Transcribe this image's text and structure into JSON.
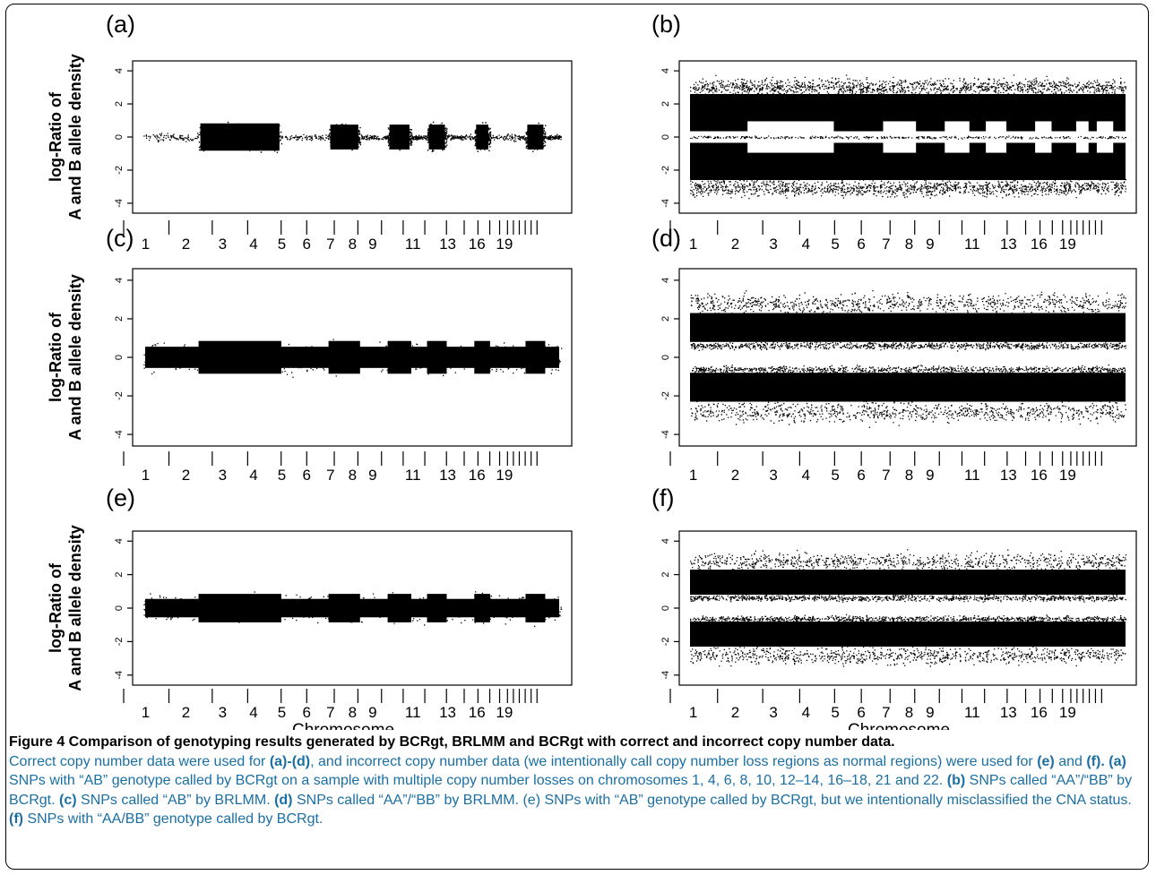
{
  "chart_data": [
    {
      "panel": "(a)",
      "type": "scatter",
      "ylabel_line1": "log-Ratio of",
      "ylabel_line2": "A and B allele density",
      "xlabel": "",
      "ylim": [
        -4,
        4
      ],
      "yticks": [
        "4",
        "2",
        "0",
        "-2",
        "-4"
      ],
      "xtick_labels": [
        "1",
        "2",
        "3",
        "4",
        "5",
        "6",
        "7",
        "8",
        "9",
        "11",
        "13",
        "16",
        "19"
      ],
      "description": "SNPs with AB genotype called by BCRgt",
      "pattern": "dense",
      "regions": [
        {
          "x0": 0.0,
          "x1": 0.14,
          "band": [
            -0.35,
            0.35
          ],
          "density": "sparse"
        },
        {
          "x0": 0.14,
          "x1": 0.35,
          "band": [
            -1.1,
            1.1
          ],
          "density": "dense"
        },
        {
          "x0": 0.35,
          "x1": 0.47,
          "band": [
            -0.25,
            0.25
          ],
          "density": "sparse"
        },
        {
          "x0": 0.47,
          "x1": 0.55,
          "band": [
            -1.0,
            1.0
          ],
          "density": "dense"
        },
        {
          "x0": 0.55,
          "x1": 0.62,
          "band": [
            -0.2,
            0.2
          ],
          "density": "sparse"
        },
        {
          "x0": 0.62,
          "x1": 0.68,
          "band": [
            -1.0,
            1.0
          ],
          "density": "dense"
        },
        {
          "x0": 0.68,
          "x1": 0.72,
          "band": [
            -0.2,
            0.2
          ],
          "density": "sparse"
        },
        {
          "x0": 0.72,
          "x1": 0.77,
          "band": [
            -1.0,
            1.0
          ],
          "density": "dense"
        },
        {
          "x0": 0.77,
          "x1": 0.84,
          "band": [
            -0.25,
            0.25
          ],
          "density": "sparse"
        },
        {
          "x0": 0.84,
          "x1": 0.88,
          "band": [
            -1.0,
            1.0
          ],
          "density": "dense"
        },
        {
          "x0": 0.88,
          "x1": 0.97,
          "band": [
            -0.3,
            0.3
          ],
          "density": "sparse"
        },
        {
          "x0": 0.97,
          "x1": 1.02,
          "band": [
            -1.0,
            1.0
          ],
          "density": "dense"
        },
        {
          "x0": 1.02,
          "x1": 1.06,
          "band": [
            -0.2,
            0.2
          ],
          "density": "sparse"
        }
      ]
    },
    {
      "panel": "(b)",
      "type": "scatter",
      "ylabel_line1": "",
      "ylabel_line2": "",
      "xlabel": "",
      "ylim": [
        -4,
        4
      ],
      "yticks": [
        "4",
        "2",
        "0",
        "-2",
        "-4"
      ],
      "xtick_labels": [
        "1",
        "2",
        "3",
        "4",
        "5",
        "6",
        "7",
        "8",
        "9",
        "11",
        "13",
        "16",
        "19"
      ],
      "description": "SNPs called AA/BB by BCRgt",
      "pattern": "bcrgt_homo"
    },
    {
      "panel": "(c)",
      "type": "scatter",
      "ylabel_line1": "log-Ratio of",
      "ylabel_line2": "A and B allele density",
      "xlabel": "",
      "ylim": [
        -4,
        4
      ],
      "yticks": [
        "4",
        "2",
        "0",
        "-2",
        "-4"
      ],
      "xtick_labels": [
        "1",
        "2",
        "3",
        "4",
        "5",
        "6",
        "7",
        "8",
        "9",
        "11",
        "13",
        "16",
        "19"
      ],
      "description": "SNPs called AB by BRLMM",
      "pattern": "uniform_ab"
    },
    {
      "panel": "(d)",
      "type": "scatter",
      "ylabel_line1": "",
      "ylabel_line2": "",
      "xlabel": "",
      "ylim": [
        -4,
        4
      ],
      "yticks": [
        "4",
        "2",
        "0",
        "-2",
        "-4"
      ],
      "xtick_labels": [
        "1",
        "2",
        "3",
        "4",
        "5",
        "6",
        "7",
        "8",
        "9",
        "11",
        "13",
        "16",
        "19"
      ],
      "description": "SNPs called AA/BB by BRLMM",
      "pattern": "two_bands"
    },
    {
      "panel": "(e)",
      "type": "scatter",
      "ylabel_line1": "log-Ratio of",
      "ylabel_line2": "A and B allele density",
      "xlabel": "Chromosome",
      "ylim": [
        -4,
        4
      ],
      "yticks": [
        "4",
        "2",
        "0",
        "-2",
        "-4"
      ],
      "xtick_labels": [
        "1",
        "2",
        "3",
        "4",
        "5",
        "6",
        "7",
        "8",
        "9",
        "11",
        "13",
        "16",
        "19"
      ],
      "description": "SNPs with AB genotype called by BCRgt, misclassified CNA status",
      "pattern": "uniform_ab"
    },
    {
      "panel": "(f)",
      "type": "scatter",
      "ylabel_line1": "",
      "ylabel_line2": "",
      "xlabel": "Chromosome",
      "ylim": [
        -4,
        4
      ],
      "yticks": [
        "4",
        "2",
        "0",
        "-2",
        "-4"
      ],
      "xtick_labels": [
        "1",
        "2",
        "3",
        "4",
        "5",
        "6",
        "7",
        "8",
        "9",
        "11",
        "13",
        "16",
        "19"
      ],
      "description": "SNPs with AA/BB genotype called by BCRgt",
      "pattern": "two_bands"
    }
  ],
  "caption": {
    "title": "Figure 4 Comparison of genotyping results generated by BCRgt, BRLMM and BCRgt with correct and incorrect copy number data.",
    "p1": "Correct copy number data were used for ",
    "b1": "(a)-(d)",
    "p2": ", and incorrect copy number data (we intentionally call copy number loss regions as normal regions) were used for ",
    "b2": "(e)",
    "p3": " and ",
    "b3": "(f).",
    "p4": " ",
    "b4": "(a)",
    "p5": " SNPs with “AB” genotype called by BCRgt on a sample with multiple copy number losses on chromosomes 1, 4, 6, 8, 10, 12–14, 16–18, 21 and 22. ",
    "b5": "(b)",
    "p6": " SNPs called “AA”/“BB” by BCRgt. ",
    "b6": "(c)",
    "p7": " SNPs called “AB” by BRLMM. ",
    "b7": "(d)",
    "p8": " SNPs called “AA”/“BB” by BRLMM. (e) SNPs with “AB” genotype called by BCRgt, but we intentionally misclassified the CNA status. ",
    "b8": "(f)",
    "p9": " SNPs with “AA/BB” genotype called by BCRgt."
  }
}
